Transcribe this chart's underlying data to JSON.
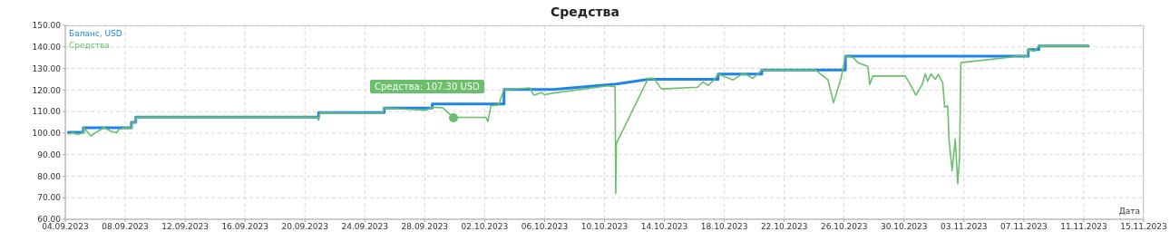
{
  "chart_data": {
    "type": "line",
    "title": "Средства",
    "xlabel": "Дата",
    "xlim": [
      "2023-09-04",
      "2023-11-15"
    ],
    "xticks": [
      {
        "value": "2023-09-04",
        "label": "04.09.2023"
      },
      {
        "value": "2023-09-08",
        "label": "08.09.2023"
      },
      {
        "value": "2023-09-12",
        "label": "12.09.2023"
      },
      {
        "value": "2023-09-16",
        "label": "16.09.2023"
      },
      {
        "value": "2023-09-20",
        "label": "20.09.2023"
      },
      {
        "value": "2023-09-24",
        "label": "24.09.2023"
      },
      {
        "value": "2023-09-28",
        "label": "28.09.2023"
      },
      {
        "value": "2023-10-02",
        "label": "02.10.2023"
      },
      {
        "value": "2023-10-06",
        "label": "06.10.2023"
      },
      {
        "value": "2023-10-10",
        "label": "10.10.2023"
      },
      {
        "value": "2023-10-14",
        "label": "14.10.2023"
      },
      {
        "value": "2023-10-18",
        "label": "18.10.2023"
      },
      {
        "value": "2023-10-22",
        "label": "22.10.2023"
      },
      {
        "value": "2023-10-26",
        "label": "26.10.2023"
      },
      {
        "value": "2023-10-30",
        "label": "30.10.2023"
      },
      {
        "value": "2023-11-03",
        "label": "03.11.2023"
      },
      {
        "value": "2023-11-07",
        "label": "07.11.2023"
      },
      {
        "value": "2023-11-11",
        "label": "11.11.2023"
      },
      {
        "value": "2023-11-15",
        "label": "15.11.2023"
      }
    ],
    "ylim": [
      60,
      150
    ],
    "yticks": [
      {
        "value": 60,
        "label": "60.00"
      },
      {
        "value": 70,
        "label": "70.00"
      },
      {
        "value": 80,
        "label": "80.00"
      },
      {
        "value": 90,
        "label": "90.00"
      },
      {
        "value": 100,
        "label": "100.00"
      },
      {
        "value": 110,
        "label": "110.00"
      },
      {
        "value": 120,
        "label": "120.00"
      },
      {
        "value": 130,
        "label": "130.00"
      },
      {
        "value": 140,
        "label": "140.00"
      },
      {
        "value": 150,
        "label": "150.00"
      }
    ],
    "grid": true,
    "legend": "top left",
    "line_style": "solid",
    "annotations": [
      {
        "text": "Средства: 107.30 USD",
        "x": "2023-09-29T22:00",
        "y": 107.3
      }
    ],
    "series": [
      {
        "name": "Средства",
        "color": "#6bbf6b",
        "x": [
          "2023-09-04T05:00",
          "2023-09-04T12:00",
          "2023-09-04T19:00",
          "2023-09-05T05:00",
          "2023-09-05T06:00",
          "2023-09-05T17:00",
          "2023-09-06T02:00",
          "2023-09-06T14:00",
          "2023-09-07T00:00",
          "2023-09-07T10:00",
          "2023-09-07T14:00",
          "2023-09-08T00:00",
          "2023-09-08T10:00",
          "2023-09-08T11:00",
          "2023-09-08T17:00",
          "2023-09-08T18:00",
          "2023-09-20T19:00",
          "2023-09-20T22:00",
          "2023-09-21T00:00",
          "2023-09-25T05:00",
          "2023-09-25T07:00",
          "2023-09-28T02:00",
          "2023-09-28T12:00",
          "2023-09-29T05:00",
          "2023-09-29T22:00",
          "2023-10-02T02:00",
          "2023-10-02T05:00",
          "2023-10-02T10:00",
          "2023-10-02T22:00",
          "2023-10-03T07:00",
          "2023-10-05T00:00",
          "2023-10-05T07:00",
          "2023-10-05T19:00",
          "2023-10-06T00:00",
          "2023-10-06T12:00",
          "2023-10-10T05:00",
          "2023-10-10T17:00",
          "2023-10-10T18:00",
          "2023-10-10T19:00",
          "2023-10-12T22:00",
          "2023-10-13T07:00",
          "2023-10-13T19:00",
          "2023-10-16T05:00",
          "2023-10-16T14:00",
          "2023-10-16T22:00",
          "2023-10-17T07:00",
          "2023-10-17T14:00",
          "2023-10-18T14:00",
          "2023-10-19T07:00",
          "2023-10-19T22:00",
          "2023-10-20T12:00",
          "2023-10-24T02:00",
          "2023-10-24T22:00",
          "2023-10-25T07:00",
          "2023-10-25T19:00",
          "2023-10-26T02:00",
          "2023-10-26T14:00",
          "2023-10-26T22:00",
          "2023-10-27T14:00",
          "2023-10-27T17:00",
          "2023-10-27T22:00",
          "2023-10-30T02:00",
          "2023-10-30T14:00",
          "2023-10-30T19:00",
          "2023-10-31T05:00",
          "2023-10-31T10:00",
          "2023-10-31T14:00",
          "2023-10-31T19:00",
          "2023-11-01T02:00",
          "2023-11-01T07:00",
          "2023-11-01T14:00",
          "2023-11-01T17:00",
          "2023-11-01T22:00",
          "2023-11-02T00:00",
          "2023-11-02T05:00",
          "2023-11-02T10:00",
          "2023-11-02T14:00",
          "2023-11-02T17:00",
          "2023-11-02T19:00",
          "2023-11-06T07:00",
          "2023-11-06T17:00",
          "2023-11-07T05:00",
          "2023-11-07T07:00",
          "2023-11-07T17:00",
          "2023-11-08T00:00",
          "2023-11-11T07:00"
        ],
        "values": [
          99.5,
          100.3,
          99.3,
          100.2,
          102.5,
          98.7,
          100.5,
          102.5,
          101.0,
          100.2,
          101.7,
          102.5,
          102.5,
          105.0,
          105.0,
          107.4,
          107.4,
          106.0,
          109.5,
          109.3,
          111.6,
          110.6,
          112.0,
          111.7,
          107.3,
          107.3,
          105.3,
          112.7,
          113.0,
          120.2,
          121.0,
          117.6,
          118.8,
          117.8,
          118.5,
          121.9,
          121.5,
          72.0,
          95.2,
          125.4,
          125.5,
          120.5,
          121.3,
          123.7,
          122.2,
          124.5,
          127.4,
          124.7,
          127.8,
          125.4,
          129.3,
          129.3,
          124.7,
          114.1,
          125.4,
          135.7,
          135.2,
          132.7,
          131.0,
          122.6,
          126.5,
          126.5,
          120.5,
          117.6,
          122.6,
          127.5,
          124.1,
          127.5,
          125.0,
          127.2,
          123.3,
          112.0,
          112.7,
          97.3,
          82.5,
          97.3,
          76.5,
          88.8,
          132.7,
          135.4,
          136.0,
          135.5,
          138.7,
          138.0,
          140.4,
          140.4
        ]
      },
      {
        "name": "Баланс, USD",
        "color": "#1e84e8",
        "x": [
          "2023-09-04T05:00",
          "2023-09-05T05:00",
          "2023-09-05T05:00",
          "2023-09-08T10:00",
          "2023-09-08T10:00",
          "2023-09-08T17:00",
          "2023-09-08T17:00",
          "2023-09-20T22:00",
          "2023-09-20T22:00",
          "2023-09-25T07:00",
          "2023-09-25T07:00",
          "2023-09-28T12:00",
          "2023-09-28T12:00",
          "2023-10-03T07:00",
          "2023-10-03T07:00",
          "2023-10-06T14:00",
          "2023-10-10T19:00",
          "2023-10-12T22:00",
          "2023-10-17T14:00",
          "2023-10-17T14:00",
          "2023-10-20T12:00",
          "2023-10-20T12:00",
          "2023-10-26T02:00",
          "2023-10-26T02:00",
          "2023-11-07T07:00",
          "2023-11-07T07:00",
          "2023-11-08T00:00",
          "2023-11-08T00:00",
          "2023-11-11T07:00"
        ],
        "values": [
          100.4,
          100.4,
          102.5,
          102.5,
          105.0,
          105.0,
          107.4,
          107.4,
          109.5,
          109.5,
          111.6,
          111.6,
          113.5,
          113.5,
          120.2,
          120.2,
          122.8,
          125.0,
          125.0,
          127.4,
          127.4,
          129.3,
          129.3,
          135.7,
          135.7,
          138.7,
          138.7,
          140.4,
          140.4
        ]
      }
    ]
  }
}
